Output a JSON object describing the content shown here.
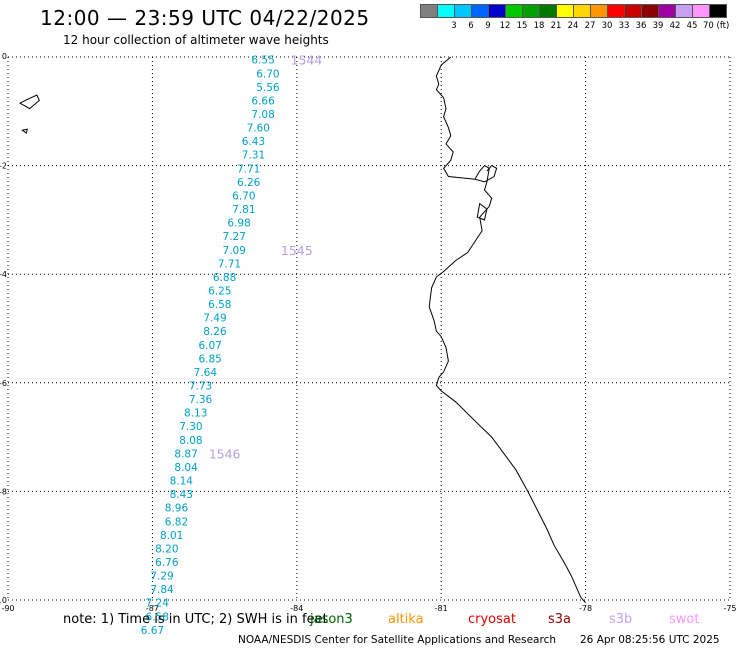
{
  "header": {
    "title": "12:00 — 23:59 UTC 04/22/2025",
    "subtitle": "12 hour collection of altimeter wave heights"
  },
  "legend": {
    "unit": "70 (ft)",
    "items": [
      {
        "label": "",
        "color": "#808080"
      },
      {
        "label": "3",
        "color": "#00ffff"
      },
      {
        "label": "6",
        "color": "#00c8ff"
      },
      {
        "label": "9",
        "color": "#0064ff"
      },
      {
        "label": "12",
        "color": "#0000cd"
      },
      {
        "label": "15",
        "color": "#00c800"
      },
      {
        "label": "18",
        "color": "#00a000"
      },
      {
        "label": "21",
        "color": "#007800"
      },
      {
        "label": "24",
        "color": "#ffff00"
      },
      {
        "label": "27",
        "color": "#ffd700"
      },
      {
        "label": "30",
        "color": "#ff9600"
      },
      {
        "label": "33",
        "color": "#ff0000"
      },
      {
        "label": "36",
        "color": "#c80000"
      },
      {
        "label": "39",
        "color": "#8b0000"
      },
      {
        "label": "42",
        "color": "#a000a0"
      },
      {
        "label": "45",
        "color": "#c8a0f0"
      },
      {
        "label": "",
        "color": "#ff96ff"
      },
      {
        "label": "",
        "color": "#000000"
      }
    ]
  },
  "chart_data": {
    "type": "scatter",
    "title": "12:00 — 23:59 UTC 04/22/2025",
    "subtitle": "12 hour collection of altimeter wave heights",
    "xlim": [
      -90,
      -75
    ],
    "ylim": [
      -10,
      0
    ],
    "xticks": [
      "-90",
      "-87",
      "-84",
      "-81",
      "-78",
      "-75"
    ],
    "yticks": [
      "0",
      "-2",
      "-4",
      "-6",
      "-8",
      "-10"
    ],
    "grid": true,
    "track_color": "#00a0c8",
    "time_color": "#b4a0e6",
    "points": [
      {
        "lon": -84.7,
        "lat": -0.05,
        "v": "6.55"
      },
      {
        "lon": -84.6,
        "lat": -0.3,
        "v": "6.70"
      },
      {
        "lon": -84.6,
        "lat": -0.55,
        "v": "5.56"
      },
      {
        "lon": -84.7,
        "lat": -0.8,
        "v": "6.66"
      },
      {
        "lon": -84.7,
        "lat": -1.05,
        "v": "7.08"
      },
      {
        "lon": -84.8,
        "lat": -1.3,
        "v": "7.60"
      },
      {
        "lon": -84.9,
        "lat": -1.55,
        "v": "6.43"
      },
      {
        "lon": -84.9,
        "lat": -1.8,
        "v": "7.31"
      },
      {
        "lon": -85.0,
        "lat": -2.05,
        "v": "7.71"
      },
      {
        "lon": -85.0,
        "lat": -2.3,
        "v": "6.26"
      },
      {
        "lon": -85.1,
        "lat": -2.55,
        "v": "6.70"
      },
      {
        "lon": -85.1,
        "lat": -2.8,
        "v": "7.81"
      },
      {
        "lon": -85.2,
        "lat": -3.05,
        "v": "6.98"
      },
      {
        "lon": -85.3,
        "lat": -3.3,
        "v": "7.27"
      },
      {
        "lon": -85.3,
        "lat": -3.55,
        "v": "7.09"
      },
      {
        "lon": -85.4,
        "lat": -3.8,
        "v": "7.71"
      },
      {
        "lon": -85.5,
        "lat": -4.05,
        "v": "6.88"
      },
      {
        "lon": -85.6,
        "lat": -4.3,
        "v": "6.25"
      },
      {
        "lon": -85.6,
        "lat": -4.55,
        "v": "6.58"
      },
      {
        "lon": -85.7,
        "lat": -4.8,
        "v": "7.49"
      },
      {
        "lon": -85.7,
        "lat": -5.05,
        "v": "8.26"
      },
      {
        "lon": -85.8,
        "lat": -5.3,
        "v": "6.07"
      },
      {
        "lon": -85.8,
        "lat": -5.55,
        "v": "6.85"
      },
      {
        "lon": -85.9,
        "lat": -5.8,
        "v": "7.64"
      },
      {
        "lon": -86.0,
        "lat": -6.05,
        "v": "7.73"
      },
      {
        "lon": -86.0,
        "lat": -6.3,
        "v": "7.36"
      },
      {
        "lon": -86.1,
        "lat": -6.55,
        "v": "8.13"
      },
      {
        "lon": -86.2,
        "lat": -6.8,
        "v": "7.30"
      },
      {
        "lon": -86.2,
        "lat": -7.05,
        "v": "8.08"
      },
      {
        "lon": -86.3,
        "lat": -7.3,
        "v": "8.87"
      },
      {
        "lon": -86.3,
        "lat": -7.55,
        "v": "8.04"
      },
      {
        "lon": -86.4,
        "lat": -7.8,
        "v": "8.14"
      },
      {
        "lon": -86.4,
        "lat": -8.05,
        "v": "8.43"
      },
      {
        "lon": -86.5,
        "lat": -8.3,
        "v": "8.96"
      },
      {
        "lon": -86.5,
        "lat": -8.55,
        "v": "6.82"
      },
      {
        "lon": -86.6,
        "lat": -8.8,
        "v": "8.01"
      },
      {
        "lon": -86.7,
        "lat": -9.05,
        "v": "8.20"
      },
      {
        "lon": -86.7,
        "lat": -9.3,
        "v": "6.76"
      },
      {
        "lon": -86.8,
        "lat": -9.55,
        "v": "7.29"
      },
      {
        "lon": -86.8,
        "lat": -9.8,
        "v": "7.84"
      },
      {
        "lon": -86.9,
        "lat": -10.05,
        "v": "7.24"
      },
      {
        "lon": -86.9,
        "lat": -10.3,
        "v": "6.58"
      },
      {
        "lon": -87.0,
        "lat": -10.55,
        "v": "6.67"
      }
    ],
    "time_labels": [
      {
        "lon": -83.8,
        "lat": -0.05,
        "v": "1544"
      },
      {
        "lon": -84.0,
        "lat": -3.55,
        "v": "1545"
      },
      {
        "lon": -85.5,
        "lat": -7.3,
        "v": "1546"
      }
    ]
  },
  "footer": {
    "note": "note: 1) Time is in UTC; 2) SWH is in feet",
    "missions": [
      {
        "label": "jason3",
        "color": "#006400"
      },
      {
        "label": "altika",
        "color": "#ff9600"
      },
      {
        "label": "cryosat",
        "color": "#e00000"
      },
      {
        "label": "s3a",
        "color": "#8b0000"
      },
      {
        "label": "s3b",
        "color": "#c8a0f0"
      },
      {
        "label": "swot",
        "color": "#ff96ff"
      }
    ],
    "credit": "NOAA/NESDIS Center for Satellite Applications and Research",
    "timestamp": "26 Apr 08:25:56 UTC 2025"
  }
}
